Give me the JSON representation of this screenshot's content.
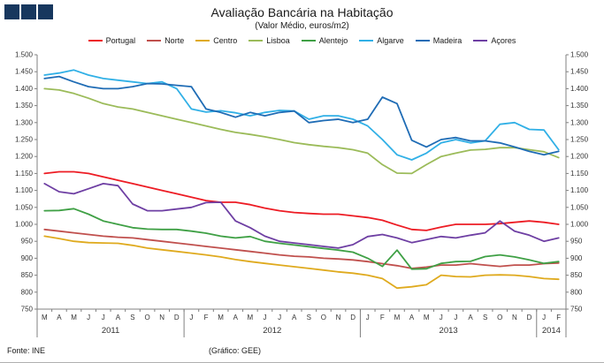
{
  "header": {
    "title": "Avaliação Bancária na Habitação",
    "subtitle": "(Valor Médio, euros/m2)"
  },
  "logo": {
    "color": "#17375e",
    "squares": 3
  },
  "footer": {
    "source": "Fonte: INE",
    "credit": "(Gráfico: GEE)"
  },
  "chart_data": {
    "type": "line",
    "title": "Avaliação Bancária na Habitação",
    "subtitle": "(Valor Médio, euros/m2)",
    "ylim": [
      750,
      1500
    ],
    "ytick_step": 50,
    "ytick_labels": [
      "750",
      "800",
      "850",
      "900",
      "950",
      "1.000",
      "1.050",
      "1.100",
      "1.150",
      "1.200",
      "1.250",
      "1.300",
      "1.350",
      "1.400",
      "1.450",
      "1.500"
    ],
    "grid": false,
    "legend_position": "top",
    "axis_color": "#808080",
    "x_labels": [
      "M",
      "A",
      "M",
      "J",
      "J",
      "A",
      "S",
      "O",
      "N",
      "D",
      "J",
      "F",
      "M",
      "A",
      "M",
      "J",
      "J",
      "A",
      "S",
      "O",
      "N",
      "D",
      "J",
      "F",
      "M",
      "A",
      "M",
      "J",
      "J",
      "A",
      "S",
      "O",
      "N",
      "D",
      "J",
      "F"
    ],
    "year_groups": [
      {
        "label": "2011",
        "start": 0,
        "end": 9
      },
      {
        "label": "2012",
        "start": 10,
        "end": 21
      },
      {
        "label": "2013",
        "start": 22,
        "end": 33
      },
      {
        "label": "2014",
        "start": 34,
        "end": 35
      }
    ],
    "series": [
      {
        "name": "Portugal",
        "color": "#ed1c24",
        "values": [
          1150,
          1155,
          1155,
          1150,
          1140,
          1130,
          1120,
          1110,
          1100,
          1090,
          1080,
          1070,
          1065,
          1065,
          1058,
          1048,
          1040,
          1035,
          1032,
          1030,
          1030,
          1025,
          1020,
          1012,
          998,
          985,
          982,
          992,
          1000,
          1000,
          1000,
          1002,
          1006,
          1010,
          1006,
          1000
        ]
      },
      {
        "name": "Norte",
        "color": "#c0504d",
        "values": [
          985,
          980,
          975,
          970,
          965,
          962,
          960,
          955,
          950,
          945,
          940,
          935,
          930,
          925,
          920,
          915,
          910,
          906,
          904,
          900,
          898,
          895,
          890,
          884,
          878,
          870,
          874,
          880,
          880,
          884,
          880,
          876,
          880,
          880,
          884,
          886
        ]
      },
      {
        "name": "Centro",
        "color": "#dfaa1e",
        "values": [
          965,
          958,
          950,
          946,
          945,
          944,
          938,
          930,
          925,
          920,
          915,
          910,
          904,
          896,
          890,
          885,
          880,
          875,
          870,
          865,
          860,
          856,
          850,
          840,
          812,
          816,
          822,
          850,
          846,
          845,
          850,
          851,
          850,
          846,
          840,
          838
        ]
      },
      {
        "name": "Lisboa",
        "color": "#9bbb59",
        "values": [
          1400,
          1396,
          1386,
          1372,
          1356,
          1346,
          1340,
          1330,
          1320,
          1310,
          1300,
          1290,
          1280,
          1271,
          1265,
          1258,
          1250,
          1241,
          1235,
          1230,
          1226,
          1220,
          1210,
          1176,
          1151,
          1150,
          1176,
          1200,
          1210,
          1219,
          1221,
          1226,
          1226,
          1220,
          1214,
          1197
        ]
      },
      {
        "name": "Alentejo",
        "color": "#3fa045",
        "values": [
          1040,
          1041,
          1046,
          1030,
          1010,
          1000,
          990,
          986,
          985,
          985,
          980,
          974,
          965,
          960,
          964,
          950,
          944,
          939,
          934,
          929,
          924,
          918,
          900,
          876,
          924,
          868,
          869,
          885,
          890,
          891,
          905,
          910,
          904,
          895,
          885,
          890
        ]
      },
      {
        "name": "Algarve",
        "color": "#31b0e6",
        "values": [
          1440,
          1446,
          1455,
          1440,
          1430,
          1425,
          1420,
          1415,
          1420,
          1400,
          1340,
          1331,
          1335,
          1329,
          1320,
          1330,
          1336,
          1334,
          1310,
          1320,
          1320,
          1310,
          1290,
          1250,
          1205,
          1190,
          1210,
          1240,
          1250,
          1240,
          1246,
          1295,
          1300,
          1280,
          1278,
          1220
        ]
      },
      {
        "name": "Madeira",
        "color": "#1f6cb5",
        "values": [
          1430,
          1436,
          1420,
          1406,
          1400,
          1400,
          1406,
          1415,
          1414,
          1410,
          1406,
          1340,
          1330,
          1316,
          1330,
          1320,
          1330,
          1334,
          1300,
          1306,
          1310,
          1300,
          1310,
          1375,
          1356,
          1248,
          1228,
          1250,
          1256,
          1246,
          1246,
          1240,
          1228,
          1215,
          1205,
          1215
        ]
      },
      {
        "name": "Açores",
        "color": "#6e3fa3",
        "values": [
          1120,
          1096,
          1090,
          1105,
          1120,
          1114,
          1060,
          1040,
          1040,
          1045,
          1050,
          1064,
          1065,
          1010,
          990,
          965,
          950,
          945,
          940,
          935,
          930,
          940,
          964,
          970,
          960,
          946,
          955,
          964,
          960,
          968,
          975,
          1010,
          980,
          968,
          950,
          960
        ]
      }
    ]
  }
}
